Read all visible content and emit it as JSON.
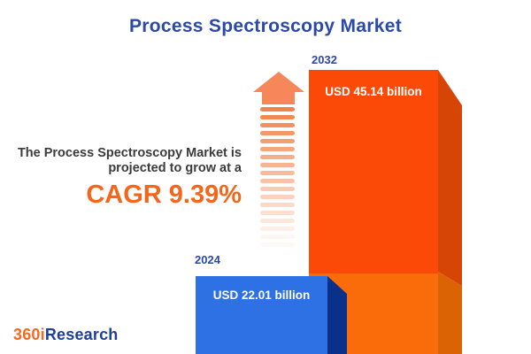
{
  "title": "Process Spectroscopy Market",
  "annotation": {
    "line1": "The Process Spectroscopy Market is",
    "line2": "projected to grow at a",
    "cagr": "CAGR 9.39%"
  },
  "chart_data": {
    "type": "bar",
    "categories": [
      "2024",
      "2032"
    ],
    "values": [
      22.01,
      45.14
    ],
    "unit": "USD billion",
    "value_labels": [
      "USD 22.01 billion",
      "USD 45.14 billion"
    ],
    "title": "Process Spectroscopy Market",
    "xlabel": "",
    "ylabel": "",
    "grid": false,
    "legend": "none",
    "annotations": [
      "The Process Spectroscopy Market is projected to grow at a",
      "CAGR 9.39%"
    ],
    "cagr_percent": 9.39,
    "bar_colors": [
      "#2e71e4",
      "#fb4a08"
    ]
  },
  "colors": {
    "accent_blue": "#2a49ab",
    "accent_orange": "#f3661b",
    "text_dark": "#3b3b3b",
    "bar2024_front": "#2e71e4",
    "bar2024_side": "#0a3189",
    "bar2032_front": "#fb4a08",
    "bar2032_side": "#d64505",
    "bar2032_base_front": "#fa6b0a",
    "bar2032_base_side": "#db6304",
    "arrow_head": "#f5875a",
    "arrow_dash": "#f0824a"
  },
  "logo": {
    "part1": "360i",
    "part2": "Research"
  }
}
